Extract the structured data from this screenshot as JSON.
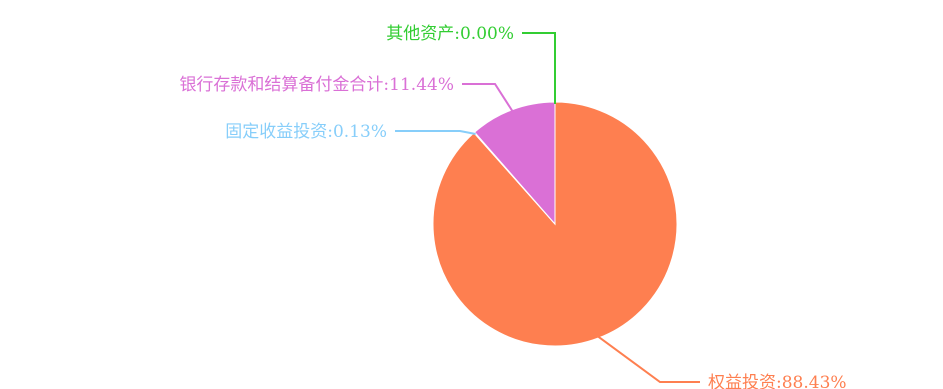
{
  "chart_data": {
    "type": "pie",
    "slices": [
      {
        "label": "权益投资",
        "display": "权益投资:88.43%",
        "value": 88.43,
        "color": "#fe7f50"
      },
      {
        "label": "固定收益投资",
        "display": "固定收益投资:0.13%",
        "value": 0.13,
        "color": "#87cefa"
      },
      {
        "label": "银行存款和结算备付金合计",
        "display": "银行存款和结算备付金合计:11.44%",
        "value": 11.44,
        "color": "#da70d6"
      },
      {
        "label": "其他资产",
        "display": "其他资产:0.00%",
        "value": 0.0,
        "color": "#32cd32"
      }
    ],
    "start_angle": "12 o'clock",
    "direction": "clockwise"
  }
}
